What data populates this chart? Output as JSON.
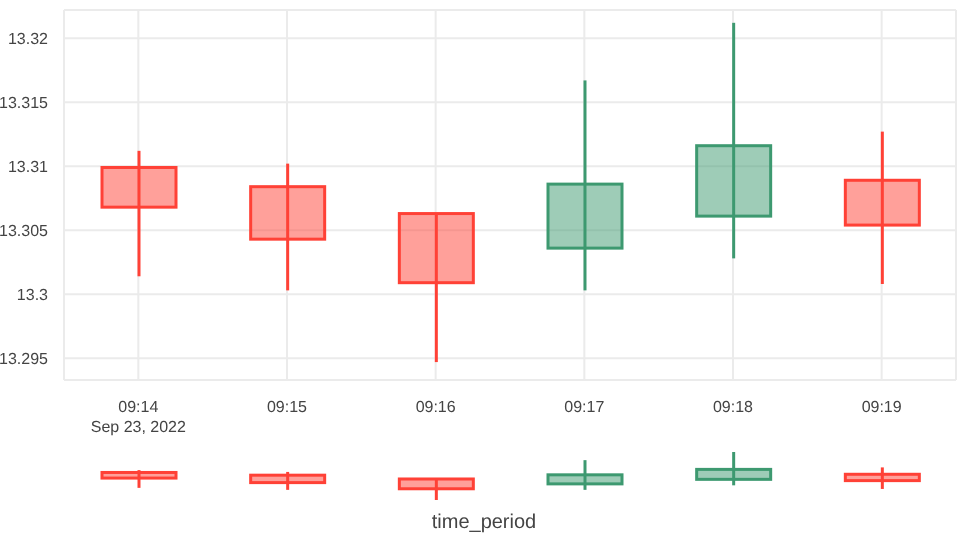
{
  "chart_data": {
    "type": "candlestick",
    "xlabel": "time_period",
    "categories": [
      "09:14\nSep 23, 2022",
      "09:15",
      "09:16",
      "09:17",
      "09:18",
      "09:19"
    ],
    "ohlc": [
      [
        13.3099,
        13.3112,
        13.3014,
        13.3068
      ],
      [
        13.3084,
        13.3102,
        13.3003,
        13.3043
      ],
      [
        13.3063,
        13.3063,
        13.2947,
        13.3009
      ],
      [
        13.3036,
        13.3167,
        13.3003,
        13.3086
      ],
      [
        13.3061,
        13.3212,
        13.3028,
        13.3116
      ],
      [
        13.3089,
        13.3127,
        13.3008,
        13.3054
      ]
    ],
    "colors": [
      "#ff4136",
      "#ff4136",
      "#ff4136",
      "#3d9970",
      "#3d9970",
      "#ff4136"
    ],
    "ylim": [
      13.2933,
      13.3222
    ],
    "yticks": [
      13.295,
      13.3,
      13.305,
      13.31,
      13.315,
      13.32
    ],
    "grid": true
  }
}
